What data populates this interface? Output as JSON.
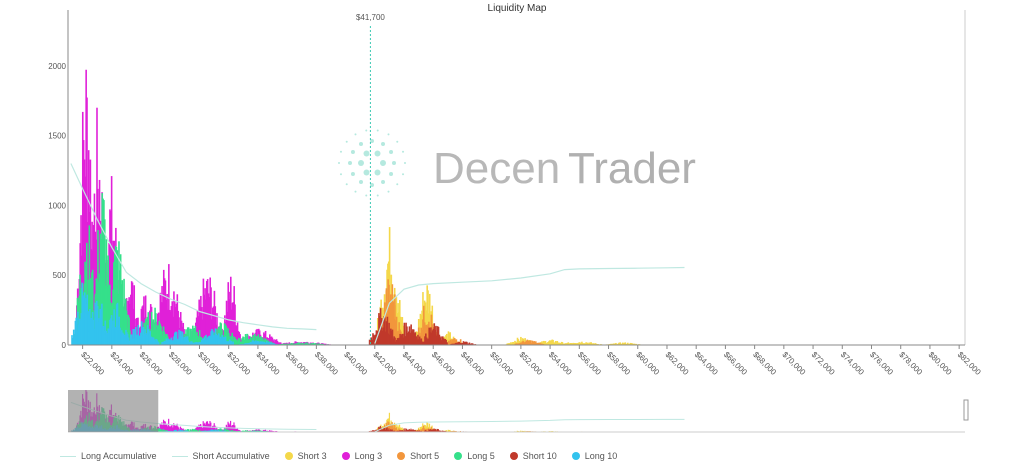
{
  "chart_data": {
    "type": "bar",
    "title": "Liquidity Map",
    "current_price_label": "$41,700",
    "current_price": 41700,
    "xlim": [
      21000,
      82400
    ],
    "ylim": [
      0,
      2400
    ],
    "y_ticks": [
      0,
      500,
      1000,
      1500,
      2000
    ],
    "y_tick_labels": [
      "0",
      "500",
      "1000",
      "1500",
      "2000"
    ],
    "x_ticks": [
      22000,
      24000,
      26000,
      28000,
      30000,
      32000,
      34000,
      36000,
      38000,
      40000,
      42000,
      44000,
      46000,
      48000,
      50000,
      52000,
      54000,
      56000,
      58000,
      60000,
      62000,
      64000,
      66000,
      68000,
      70000,
      72000,
      74000,
      76000,
      78000,
      80000,
      82000
    ],
    "x_tick_labels": [
      "$22,000",
      "$24,000",
      "$26,000",
      "$28,000",
      "$30,000",
      "$32,000",
      "$34,000",
      "$36,000",
      "$38,000",
      "$40,000",
      "$42,000",
      "$44,000",
      "$46,000",
      "$48,000",
      "$50,000",
      "$52,000",
      "$54,000",
      "$56,000",
      "$58,000",
      "$60,000",
      "$62,000",
      "$64,000",
      "$66,000",
      "$68,000",
      "$70,000",
      "$72,000",
      "$74,000",
      "$76,000",
      "$78,000",
      "$80,000",
      "$82,000"
    ],
    "legend_position": "bottom",
    "series": [
      {
        "name": "Long Accumulative",
        "kind": "line",
        "color": "#bfe8e1",
        "points": [
          [
            21200,
            1300
          ],
          [
            22000,
            1120
          ],
          [
            23000,
            900
          ],
          [
            24000,
            700
          ],
          [
            25000,
            520
          ],
          [
            26000,
            440
          ],
          [
            27000,
            380
          ],
          [
            28000,
            330
          ],
          [
            29000,
            290
          ],
          [
            30000,
            240
          ],
          [
            31000,
            210
          ],
          [
            32000,
            180
          ],
          [
            33000,
            160
          ],
          [
            34000,
            145
          ],
          [
            35000,
            130
          ],
          [
            36000,
            120
          ],
          [
            37000,
            115
          ],
          [
            38000,
            110
          ]
        ]
      },
      {
        "name": "Short Accumulative",
        "kind": "line",
        "color": "#bfe8e1",
        "points": [
          [
            42000,
            10
          ],
          [
            43000,
            300
          ],
          [
            44000,
            400
          ],
          [
            45000,
            430
          ],
          [
            46000,
            440
          ],
          [
            48000,
            450
          ],
          [
            50000,
            460
          ],
          [
            52000,
            480
          ],
          [
            54000,
            510
          ],
          [
            55000,
            540
          ],
          [
            56000,
            545
          ],
          [
            58000,
            548
          ],
          [
            60000,
            550
          ],
          [
            62000,
            553
          ],
          [
            63200,
            555
          ]
        ]
      },
      {
        "name": "Short 3",
        "kind": "bar",
        "color": "#f4d84a",
        "clusters": [
          [
            43000,
            880,
            700
          ],
          [
            45500,
            500,
            600
          ],
          [
            47000,
            100,
            500
          ],
          [
            52000,
            60,
            800
          ],
          [
            54000,
            40,
            1000
          ],
          [
            56000,
            30,
            1200
          ],
          [
            59000,
            20,
            1000
          ]
        ]
      },
      {
        "name": "Long 3",
        "kind": "bar",
        "color": "#e020d8",
        "clusters": [
          [
            22200,
            2300,
            500
          ],
          [
            23000,
            1750,
            500
          ],
          [
            23900,
            1250,
            600
          ],
          [
            25200,
            600,
            500
          ],
          [
            26300,
            400,
            700
          ],
          [
            27800,
            630,
            900
          ],
          [
            30500,
            550,
            800
          ],
          [
            32100,
            550,
            500
          ],
          [
            34000,
            120,
            1200
          ],
          [
            37000,
            30,
            1500
          ]
        ]
      },
      {
        "name": "Short 5",
        "kind": "bar",
        "color": "#f2963c",
        "clusters": [
          [
            43000,
            520,
            600
          ],
          [
            45500,
            320,
            600
          ],
          [
            47500,
            60,
            600
          ],
          [
            52500,
            40,
            800
          ]
        ]
      },
      {
        "name": "Long 5",
        "kind": "bar",
        "color": "#35e08a",
        "clusters": [
          [
            22200,
            1000,
            600
          ],
          [
            23300,
            1250,
            500
          ],
          [
            24300,
            850,
            700
          ],
          [
            26800,
            280,
            900
          ],
          [
            29500,
            150,
            900
          ],
          [
            31500,
            170,
            900
          ],
          [
            33500,
            90,
            1200
          ],
          [
            37000,
            20,
            1500
          ]
        ]
      },
      {
        "name": "Short 10",
        "kind": "bar",
        "color": "#c0392b",
        "clusters": [
          [
            42500,
            280,
            700
          ],
          [
            44300,
            200,
            700
          ],
          [
            46000,
            160,
            700
          ],
          [
            48000,
            30,
            700
          ]
        ]
      },
      {
        "name": "Long 10",
        "kind": "bar",
        "color": "#33c3ee",
        "clusters": [
          [
            22000,
            460,
            600
          ],
          [
            23000,
            380,
            600
          ],
          [
            24200,
            320,
            700
          ],
          [
            26000,
            180,
            900
          ],
          [
            28500,
            110,
            900
          ],
          [
            31000,
            120,
            1000
          ],
          [
            34000,
            40,
            1000
          ]
        ]
      }
    ]
  },
  "watermark": {
    "text_light": "Decen",
    "text_bold": "Trader",
    "color": "#b5b5b5",
    "dots_color": "#a3e3d7"
  },
  "colors": {
    "axis": "#888888",
    "price_line": "#3cc9b3",
    "navigator_mask": "#888888"
  }
}
